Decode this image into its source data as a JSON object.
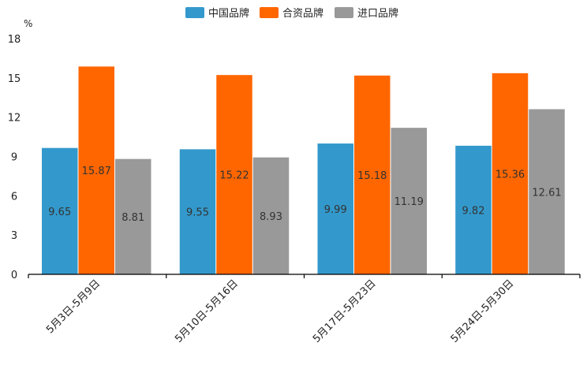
{
  "chart_data": {
    "type": "bar",
    "title": "",
    "unit": "%",
    "xlabel": "",
    "ylabel": "",
    "ylim": [
      0,
      18
    ],
    "yticks": [
      0,
      3,
      6,
      9,
      12,
      15,
      18
    ],
    "grid": false,
    "legend_position": "top-center",
    "categories": [
      "5月3日-5月9日",
      "5月10日-5月16日",
      "5月17日-5月23日",
      "5月24日-5月30日"
    ],
    "series": [
      {
        "name": "中国品牌",
        "color": "#3399cc",
        "values": [
          9.65,
          9.55,
          9.99,
          9.82
        ]
      },
      {
        "name": "合资品牌",
        "color": "#ff6600",
        "values": [
          15.87,
          15.22,
          15.18,
          15.36
        ]
      },
      {
        "name": "进口品牌",
        "color": "#999999",
        "values": [
          8.81,
          8.93,
          11.19,
          12.61
        ]
      }
    ]
  }
}
